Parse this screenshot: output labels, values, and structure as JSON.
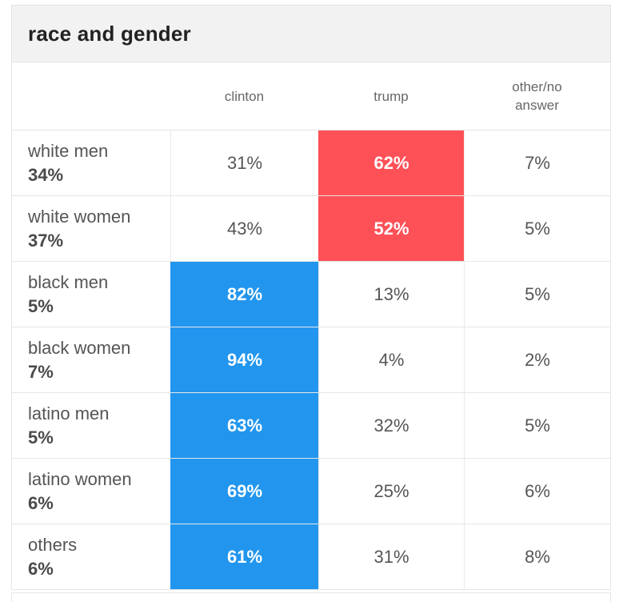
{
  "header": {
    "title": "race and gender"
  },
  "colors": {
    "clinton_highlight": "#2296ee",
    "trump_highlight": "#fd5157"
  },
  "table": {
    "columns": [
      {
        "key": "clinton",
        "label": "clinton"
      },
      {
        "key": "trump",
        "label": "trump"
      },
      {
        "key": "other",
        "label": "other/no answer"
      }
    ],
    "rows": [
      {
        "label": "white men",
        "share": "34%",
        "clinton": "31%",
        "trump": "62%",
        "other": "7%",
        "highlight": "trump"
      },
      {
        "label": "white women",
        "share": "37%",
        "clinton": "43%",
        "trump": "52%",
        "other": "5%",
        "highlight": "trump"
      },
      {
        "label": "black men",
        "share": "5%",
        "clinton": "82%",
        "trump": "13%",
        "other": "5%",
        "highlight": "clinton"
      },
      {
        "label": "black women",
        "share": "7%",
        "clinton": "94%",
        "trump": "4%",
        "other": "2%",
        "highlight": "clinton"
      },
      {
        "label": "latino men",
        "share": "5%",
        "clinton": "63%",
        "trump": "32%",
        "other": "5%",
        "highlight": "clinton"
      },
      {
        "label": "latino women",
        "share": "6%",
        "clinton": "69%",
        "trump": "25%",
        "other": "6%",
        "highlight": "clinton"
      },
      {
        "label": "others",
        "share": "6%",
        "clinton": "61%",
        "trump": "31%",
        "other": "8%",
        "highlight": "clinton"
      }
    ]
  },
  "chart_data": {
    "type": "table",
    "title": "race and gender",
    "categories": [
      "white men",
      "white women",
      "black men",
      "black women",
      "latino men",
      "latino women",
      "others"
    ],
    "category_shares_pct": [
      34,
      37,
      5,
      7,
      5,
      6,
      6
    ],
    "series": [
      {
        "name": "clinton",
        "values": [
          31,
          43,
          82,
          94,
          63,
          69,
          61
        ]
      },
      {
        "name": "trump",
        "values": [
          62,
          52,
          13,
          4,
          32,
          25,
          31
        ]
      },
      {
        "name": "other/no answer",
        "values": [
          7,
          5,
          5,
          2,
          5,
          6,
          8
        ]
      }
    ],
    "highlighted_winner_per_row": [
      "trump",
      "trump",
      "clinton",
      "clinton",
      "clinton",
      "clinton",
      "clinton"
    ],
    "highlight_colors": {
      "clinton": "#2296ee",
      "trump": "#fd5157"
    },
    "layout": "rows are voter groups with population share; winning candidate cell is color-filled"
  }
}
